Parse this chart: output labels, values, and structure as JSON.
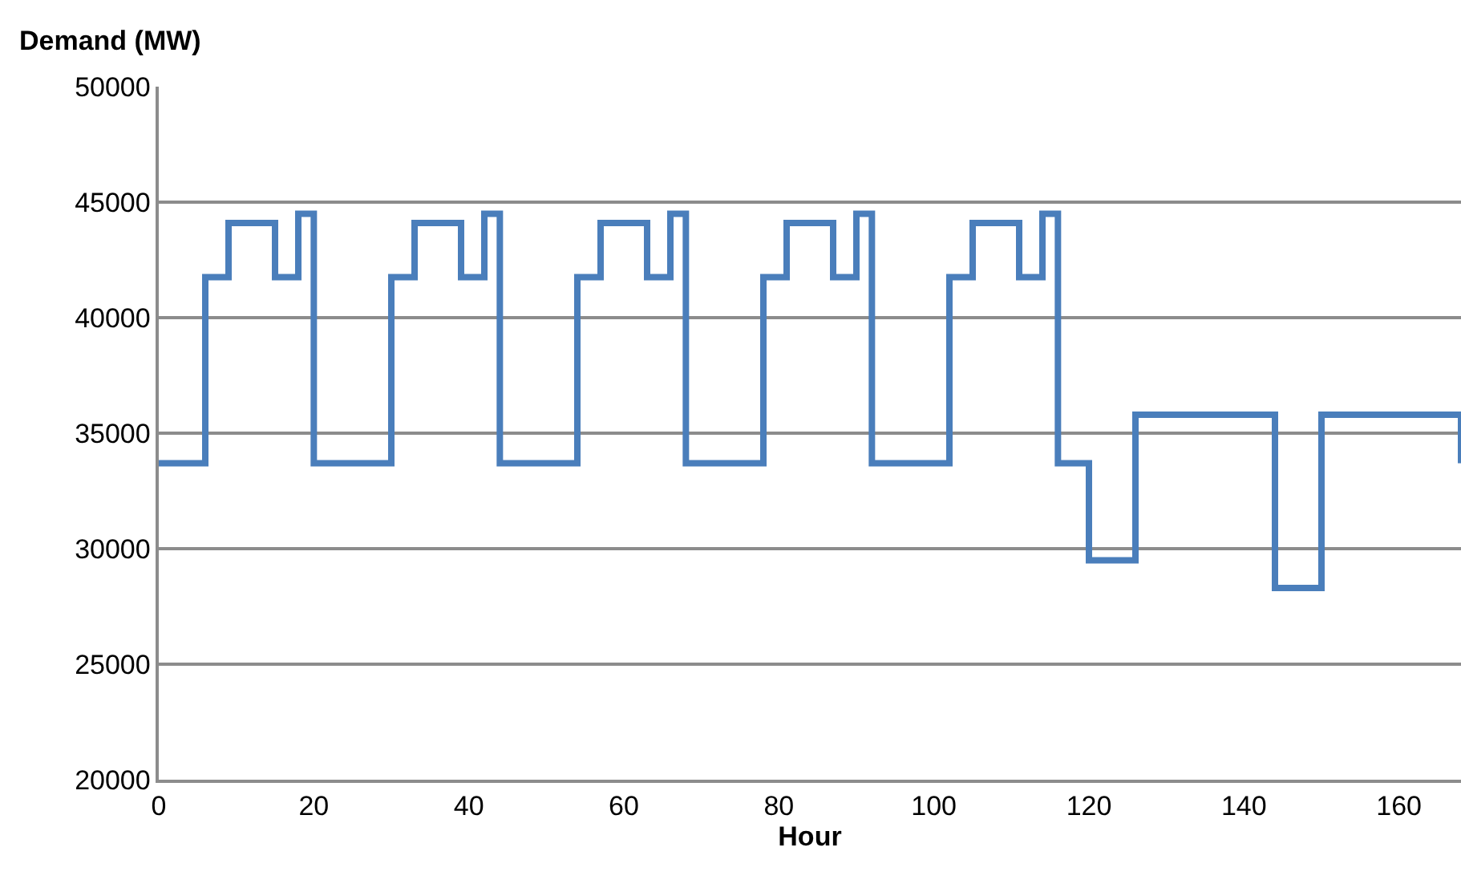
{
  "chart_data": {
    "type": "step",
    "ylabel": "Demand (MW)",
    "xlabel": "Hour",
    "x": [
      0,
      6,
      9,
      15,
      18,
      20,
      30,
      33,
      39,
      42,
      44,
      54,
      57,
      63,
      66,
      68,
      78,
      81,
      87,
      90,
      92,
      102,
      105,
      111,
      114,
      116,
      120,
      126,
      144,
      150,
      168
    ],
    "series": [
      {
        "color": "#4a7ebb",
        "values": [
          33700,
          41750,
          44100,
          41750,
          44500,
          33700,
          41750,
          44100,
          41750,
          44500,
          33700,
          41750,
          44100,
          41750,
          44500,
          33700,
          41750,
          44100,
          41750,
          44500,
          33700,
          41750,
          44100,
          41750,
          44500,
          33700,
          29500,
          35800,
          28300,
          35800,
          33700
        ]
      }
    ],
    "xlim": [
      0,
      168
    ],
    "xticks": [
      0,
      20,
      40,
      60,
      80,
      100,
      120,
      140,
      160
    ],
    "ylim": [
      20000,
      50000
    ],
    "yticks": [
      20000,
      25000,
      30000,
      35000,
      40000,
      45000,
      50000
    ],
    "grid": "y",
    "legend": false,
    "marker": "none",
    "line_style": "solid"
  }
}
